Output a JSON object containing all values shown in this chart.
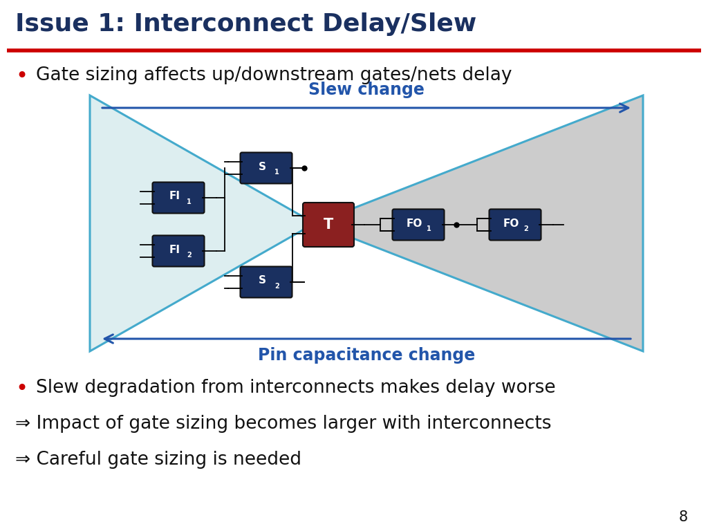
{
  "title": "Issue 1: Interconnect Delay/Slew",
  "title_color": "#1a3060",
  "title_fontsize": 26,
  "red_line_color": "#cc0000",
  "bullet1": "Gate sizing affects up/downstream gates/nets delay",
  "bullet1_color": "#cc0000",
  "bullet1_text_color": "#111111",
  "slew_label": "Slew change",
  "slew_label_color": "#2255aa",
  "pin_cap_label": "Pin capacitance change",
  "pin_cap_label_color": "#2255aa",
  "arrow_color": "#2255aa",
  "gate_dark_blue": "#1a3060",
  "gate_red": "#8b2020",
  "cone_fill_left": "#ddeef0",
  "cone_fill_right": "#cccccc",
  "cone_edge_color": "#44aacc",
  "bullet2": "Slew degradation from interconnects makes delay worse",
  "bullet2_color": "#cc0000",
  "bullet2_text_color": "#111111",
  "line3": "⇒ Impact of gate sizing becomes larger with interconnects",
  "line4": "⇒ Careful gate sizing is needed",
  "body_text_color": "#111111",
  "body_fontsize": 19,
  "page_number": "8",
  "bg_color": "#ffffff"
}
